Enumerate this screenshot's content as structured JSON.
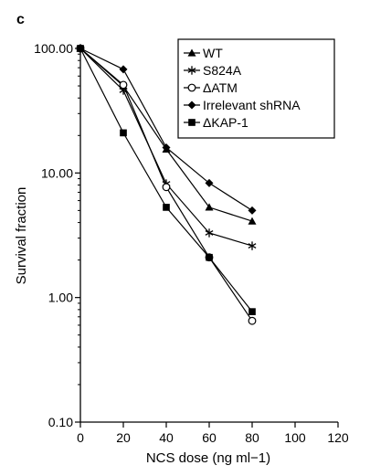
{
  "panel_label": "c",
  "chart_data": {
    "type": "line",
    "xlabel": "NCS dose (ng ml−1)",
    "ylabel": "Survival fraction",
    "x_ticks": [
      0,
      20,
      40,
      60,
      80,
      100,
      120
    ],
    "y_ticks": [
      0.1,
      1,
      10,
      100
    ],
    "y_tick_labels": [
      "0.10",
      "1.00",
      "10.00",
      "100.00"
    ],
    "xlim": [
      0,
      120
    ],
    "ylim": [
      0.1,
      100
    ],
    "y_scale": "log",
    "grid": false,
    "legend_position": "top-right",
    "series": [
      {
        "name": "WT",
        "marker": "triangle",
        "x": [
          0,
          20,
          40,
          60,
          80
        ],
        "y": [
          100,
          50,
          15.5,
          5.3,
          4.1
        ]
      },
      {
        "name": "S824A",
        "marker": "asterisk",
        "x": [
          0,
          20,
          40,
          60,
          80
        ],
        "y": [
          100,
          46,
          8.2,
          3.3,
          2.6
        ]
      },
      {
        "name": "ΔATM",
        "marker": "open-circle",
        "x": [
          0,
          20,
          40,
          60,
          80
        ],
        "y": [
          100,
          51,
          7.7,
          2.1,
          0.65
        ]
      },
      {
        "name": "Irrelevant shRNA",
        "marker": "diamond",
        "x": [
          0,
          20,
          40,
          60,
          80
        ],
        "y": [
          100,
          68,
          16,
          8.3,
          5.0
        ]
      },
      {
        "name": "ΔKAP-1",
        "marker": "square",
        "x": [
          0,
          20,
          40,
          60,
          80
        ],
        "y": [
          100,
          21,
          5.3,
          2.1,
          0.77
        ]
      }
    ]
  }
}
